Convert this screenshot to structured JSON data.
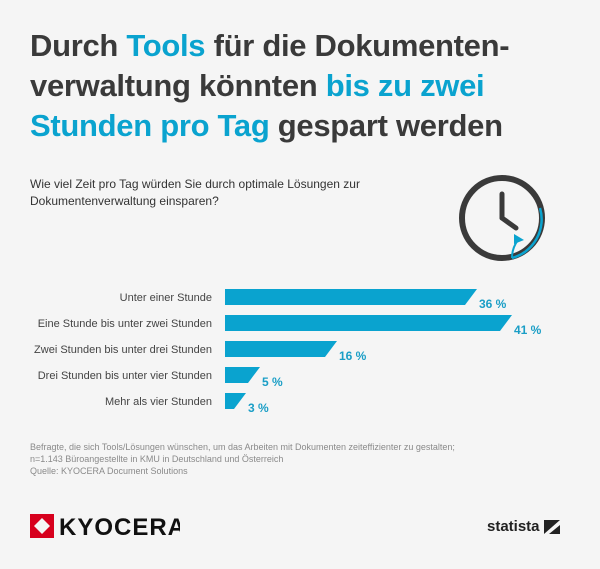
{
  "title": {
    "parts": [
      "Durch ",
      "Tools",
      " für die Dokumenten-verwaltung könnten ",
      "bis zu zwei Stunden pro Tag",
      " gespart werden"
    ]
  },
  "question": "Wie viel Zeit pro Tag würden Sie durch optimale Lösungen zur Dokumentenverwaltung einsparen?",
  "colors": {
    "accent": "#0aa3cf",
    "text": "#3a3a3a"
  },
  "chart_data": {
    "type": "bar",
    "orientation": "horizontal",
    "categories": [
      "Unter einer Stunde",
      "Eine Stunde bis unter zwei Stunden",
      "Zwei Stunden bis unter drei Stunden",
      "Drei Stunden bis unter vier Stunden",
      "Mehr als vier Stunden"
    ],
    "values": [
      36,
      41,
      16,
      5,
      3
    ],
    "value_labels": [
      "36 %",
      "41 %",
      "16 %",
      "5 %",
      "3 %"
    ],
    "unit": "%"
  },
  "notes": [
    "Befragte, die sich Tools/Lösungen wünschen, um das Arbeiten mit Dokumenten zeiteffizienter zu gestalten;",
    "n=1.143 Büroangestellte in KMU in Deutschland und Österreich",
    "Quelle: KYOCERA Document Solutions"
  ],
  "logos": {
    "kyocera": "KYOCERA",
    "statista": "statista"
  }
}
